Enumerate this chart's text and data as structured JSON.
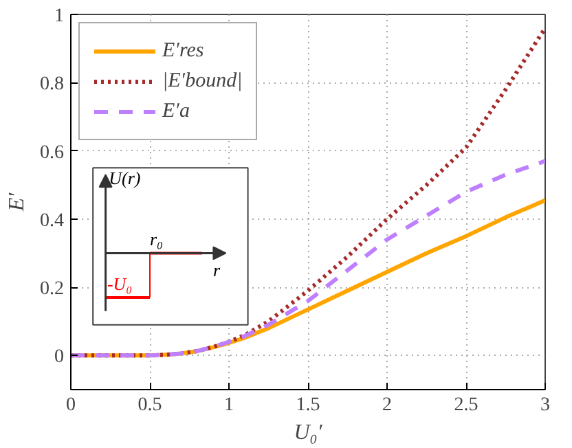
{
  "chart_data": {
    "type": "line",
    "xlabel": "U₀′",
    "ylabel": "E′",
    "xlim": [
      0,
      3
    ],
    "ylim": [
      -0.1,
      1
    ],
    "xticks": [
      0,
      0.5,
      1,
      1.5,
      2,
      2.5,
      3
    ],
    "yticks": [
      0,
      0.2,
      0.4,
      0.6,
      0.8,
      1
    ],
    "grid": true,
    "legend": "top left",
    "annotations": [
      "U(r)",
      "r₀",
      "r",
      "-U₀"
    ],
    "series": [
      {
        "name": "E′res",
        "color": "#ffa500",
        "line_style": "solid",
        "x": [
          0,
          0.25,
          0.5,
          0.6,
          0.7,
          0.8,
          0.9,
          1,
          1.1,
          1.25,
          1.5,
          1.75,
          2,
          2.25,
          2.5,
          2.75,
          3
        ],
        "values": [
          0,
          0,
          0,
          0.002,
          0.006,
          0.013,
          0.024,
          0.037,
          0.052,
          0.08,
          0.135,
          0.19,
          0.245,
          0.3,
          0.35,
          0.405,
          0.455
        ]
      },
      {
        "name": "|E′bound|",
        "color": "#a52a2a",
        "line_style": "dotted",
        "x": [
          0,
          0.25,
          0.5,
          0.6,
          0.7,
          0.8,
          0.9,
          1,
          1.1,
          1.25,
          1.5,
          1.75,
          2,
          2.25,
          2.5,
          2.75,
          3
        ],
        "values": [
          0,
          0,
          0,
          0.002,
          0.006,
          0.013,
          0.025,
          0.04,
          0.06,
          0.1,
          0.19,
          0.29,
          0.4,
          0.5,
          0.61,
          0.78,
          0.96
        ]
      },
      {
        "name": "E′a",
        "color": "#bf80ff",
        "line_style": "dashed",
        "x": [
          0,
          0.25,
          0.5,
          0.6,
          0.7,
          0.8,
          0.9,
          1,
          1.1,
          1.25,
          1.5,
          1.75,
          2,
          2.25,
          2.5,
          2.75,
          3
        ],
        "values": [
          0,
          0,
          0,
          0.002,
          0.006,
          0.013,
          0.025,
          0.04,
          0.057,
          0.09,
          0.16,
          0.25,
          0.34,
          0.41,
          0.48,
          0.53,
          0.57
        ]
      }
    ]
  }
}
